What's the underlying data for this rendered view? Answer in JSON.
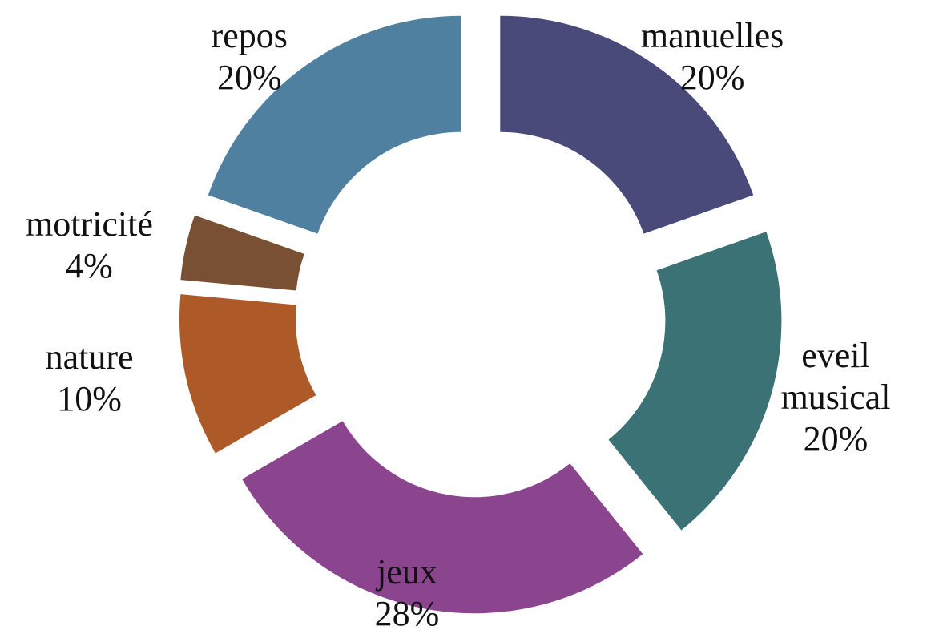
{
  "chart_data": {
    "type": "donut",
    "categories": [
      "manuelles",
      "eveil musical",
      "jeux",
      "nature",
      "motricité",
      "repos"
    ],
    "values": [
      20,
      20,
      28,
      10,
      4,
      20
    ],
    "value_labels": [
      "20%",
      "20%",
      "28%",
      "10%",
      "4%",
      "20%"
    ],
    "colors": [
      "#4a4a7a",
      "#3b7275",
      "#8b448e",
      "#ad5a28",
      "#7a5035",
      "#5080a0"
    ]
  }
}
